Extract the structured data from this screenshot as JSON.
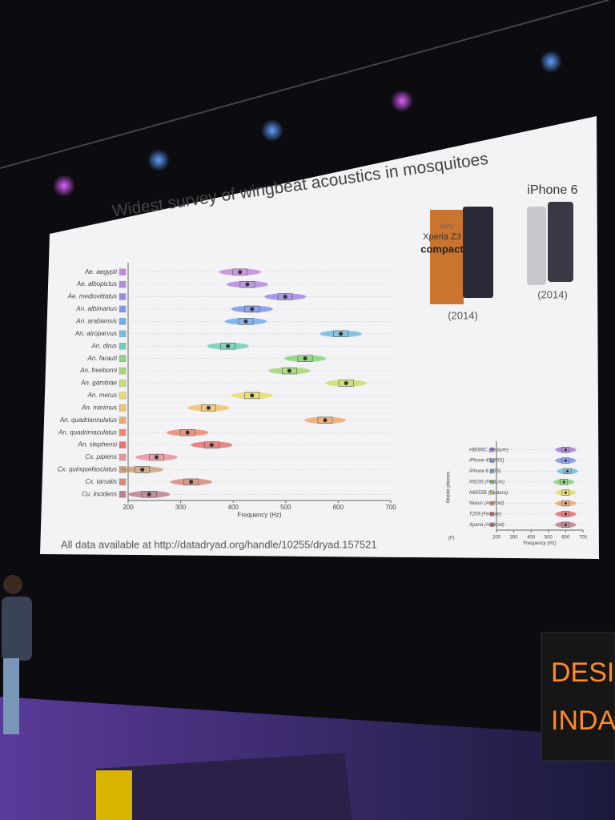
{
  "slide": {
    "title": "Widest survey of wingbeat acoustics in mosquitoes",
    "footer": "All data available at http://datadryad.org/handle/10255/dryad.157521",
    "phone_left": {
      "brand": "Sony",
      "model": "Xperia Z3",
      "variant": "compact",
      "year": "(2014)"
    },
    "phone_right": {
      "model": "iPhone 6",
      "year": "(2014)"
    },
    "chart": {
      "type": "box",
      "categories": [
        "Ae. aegypti",
        "Ae. albopictus",
        "Ae. mediovittatus",
        "An. albimanus",
        "An. arabiensis",
        "An. atroparvus",
        "An. dirus",
        "An. farauti",
        "An. freeborni",
        "An. gambiae",
        "An. merus",
        "An. minimus",
        "An. quadriannulatus",
        "An. quadrimaculatus",
        "An. stephensi",
        "Cx. pipiens",
        "Cx. quinquefasciatus",
        "Cx. tarsalis",
        "Cu. incidens"
      ],
      "values": [
        413,
        427,
        499,
        436,
        424,
        605,
        390,
        537,
        507,
        615,
        436,
        353,
        575,
        313,
        359,
        254,
        227,
        320,
        240
      ],
      "colors": [
        "#b15fd0",
        "#9b5fd6",
        "#7a5fe0",
        "#4f6fe8",
        "#3f8fe6",
        "#40a8d8",
        "#3cc0a0",
        "#5ec84a",
        "#86d03a",
        "#b8d830",
        "#e6d634",
        "#efb132",
        "#ee8a34",
        "#e85a34",
        "#e83a3a",
        "#e26a7a",
        "#b9804a",
        "#c9604a",
        "#a85060"
      ],
      "xlim": [
        200,
        700
      ],
      "xticks": [
        200,
        300,
        400,
        500,
        600,
        700
      ],
      "xlabel": "Frequency (Hz)"
    },
    "inset": {
      "type": "box",
      "panel": "(F)",
      "ylabel": "Mobile phones",
      "categories": [
        "HB006C (Feature)",
        "iPhone 4S (iOS)",
        "iPhone 6 (iOS)",
        "N5235 (Feature)",
        "N6555B (Feature)",
        "Nexus (Android)",
        "T209 (Feature)",
        "Xperia (Android)"
      ],
      "values": [
        600,
        600,
        610,
        590,
        600,
        600,
        600,
        600
      ],
      "colors": [
        "#8a4fd0",
        "#4f6fe8",
        "#3fa8d8",
        "#5ec84a",
        "#e6d634",
        "#ee8a34",
        "#e83a3a",
        "#a85060"
      ],
      "xlim": [
        200,
        700
      ],
      "xticks": [
        200,
        300,
        400,
        500,
        600,
        700
      ],
      "xlabel": "Frequency (Hz)"
    }
  },
  "sign": {
    "line1": "DESI",
    "line2": "INDA"
  }
}
